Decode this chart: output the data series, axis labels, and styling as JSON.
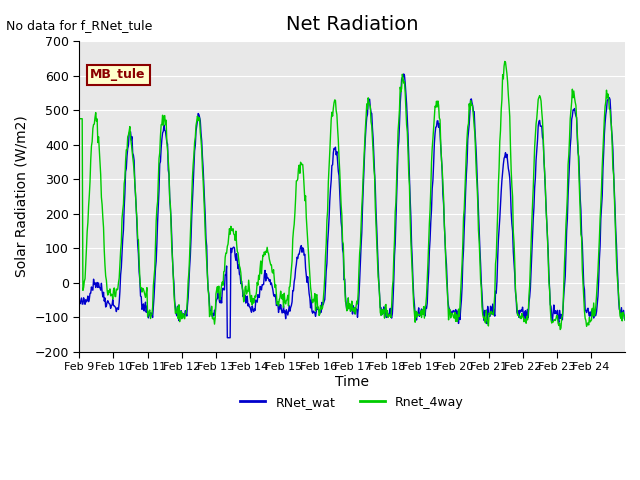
{
  "title": "Net Radiation",
  "xlabel": "Time",
  "ylabel": "Solar Radiation (W/m2)",
  "ylim": [
    -200,
    700
  ],
  "yticks": [
    -200,
    -100,
    0,
    100,
    200,
    300,
    400,
    500,
    600,
    700
  ],
  "xtick_labels": [
    "Feb 9",
    "Feb 10",
    "Feb 11",
    "Feb 12",
    "Feb 13",
    "Feb 14",
    "Feb 15",
    "Feb 16",
    "Feb 17",
    "Feb 18",
    "Feb 19",
    "Feb 20",
    "Feb 21",
    "Feb 22",
    "Feb 23",
    "Feb 24"
  ],
  "annotation_text": "No data for f_RNet_tule",
  "station_label": "MB_tule",
  "line1_color": "#0000cc",
  "line2_color": "#00cc00",
  "line1_label": "RNet_wat",
  "line2_label": "Rnet_4way",
  "title_fontsize": 14,
  "label_fontsize": 10,
  "blue_peaks": [
    0,
    430,
    450,
    480,
    100,
    20,
    100,
    390,
    530,
    600,
    470,
    525,
    380,
    465,
    510,
    540
  ],
  "blue_night": [
    -60,
    -70,
    -90,
    -90,
    -50,
    -70,
    -90,
    -75,
    -85,
    -95,
    -90,
    -90,
    -85,
    -90,
    -90,
    -90
  ],
  "green_peaks": [
    475,
    430,
    495,
    480,
    160,
    90,
    350,
    530,
    525,
    600,
    530,
    525,
    635,
    545,
    545,
    550
  ],
  "green_night": [
    -30,
    -25,
    -90,
    -95,
    -30,
    -45,
    -50,
    -75,
    -85,
    -100,
    -95,
    -100,
    -90,
    -110,
    -120,
    -90
  ]
}
